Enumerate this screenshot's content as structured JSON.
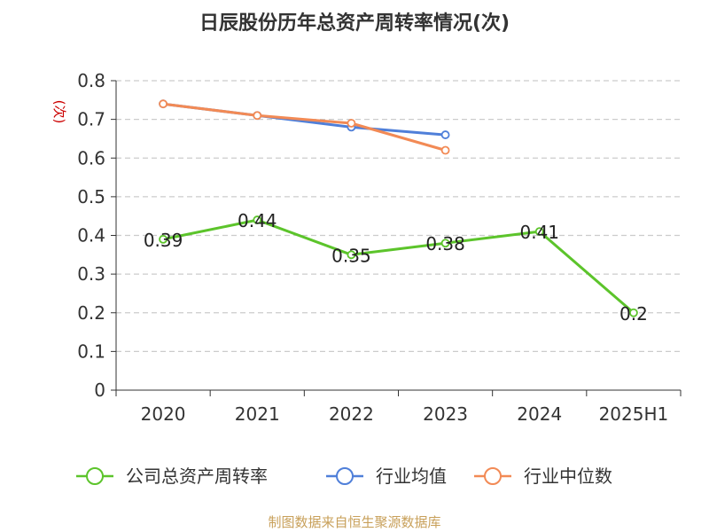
{
  "chart_data": {
    "type": "line",
    "title": "日辰股份历年总资产周转率情况(次)",
    "ylabel": "(次)",
    "categories": [
      "2020",
      "2021",
      "2022",
      "2023",
      "2024",
      "2025H1"
    ],
    "ylim": [
      0,
      0.8
    ],
    "yticks": [
      "0",
      "0.1",
      "0.2",
      "0.3",
      "0.4",
      "0.5",
      "0.6",
      "0.7",
      "0.8"
    ],
    "grid": true,
    "legend_position": "bottom",
    "series": [
      {
        "name": "公司总资产周转率",
        "color": "#5cc42b",
        "values": [
          0.39,
          0.44,
          0.35,
          0.38,
          0.41,
          0.2
        ],
        "labels": [
          "0.39",
          "0.44",
          "0.35",
          "0.38",
          "0.41",
          "0.2"
        ]
      },
      {
        "name": "行业均值",
        "color": "#4f7fd9",
        "values": [
          0.74,
          0.71,
          0.68,
          0.66,
          null,
          null
        ]
      },
      {
        "name": "行业中位数",
        "color": "#f28a55",
        "values": [
          0.74,
          0.71,
          0.69,
          0.62,
          null,
          null
        ]
      }
    ]
  },
  "source": "制图数据来自恒生聚源数据库"
}
